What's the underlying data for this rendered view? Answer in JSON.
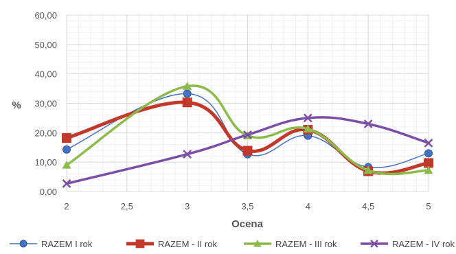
{
  "chart_data": {
    "type": "line",
    "xlabel": "Ocena",
    "ylabel": "%",
    "x": [
      2,
      2.5,
      3,
      3.5,
      4,
      4.5,
      5
    ],
    "x_tick_labels": [
      "2",
      "2,5",
      "3",
      "3,5",
      "4",
      "4,5",
      "5"
    ],
    "ylim": [
      0,
      60
    ],
    "y_tick_labels": [
      "0,00",
      "10,00",
      "20,00",
      "30,00",
      "40,00",
      "50,00",
      "60,00"
    ],
    "grid": true,
    "legend_position": "bottom",
    "series": [
      {
        "name": "RAZEM I rok",
        "color": "#4472c4",
        "marker": "circle",
        "x": [
          2,
          3,
          3.5,
          4,
          4.5,
          5
        ],
        "values": [
          14.3,
          33.3,
          12.7,
          19.0,
          8.3,
          13.0
        ]
      },
      {
        "name": "RAZEM - II rok",
        "color": "#c0392b",
        "marker": "square",
        "x": [
          2,
          3,
          3.5,
          4,
          4.5,
          5
        ],
        "values": [
          18.2,
          30.3,
          13.9,
          21.0,
          6.9,
          9.7
        ]
      },
      {
        "name": "RAZEM - III rok",
        "color": "#8dbb4a",
        "marker": "triangle",
        "x": [
          2,
          3,
          3.5,
          4,
          4.5,
          5
        ],
        "values": [
          9.0,
          35.8,
          19.0,
          21.3,
          7.2,
          7.2
        ]
      },
      {
        "name": "RAZEM - IV rok",
        "color": "#7b4fa5",
        "marker": "x",
        "x": [
          2,
          3,
          3.5,
          4,
          4.5,
          5
        ],
        "values": [
          2.7,
          12.7,
          19.3,
          25.0,
          23.0,
          16.5
        ]
      }
    ]
  }
}
